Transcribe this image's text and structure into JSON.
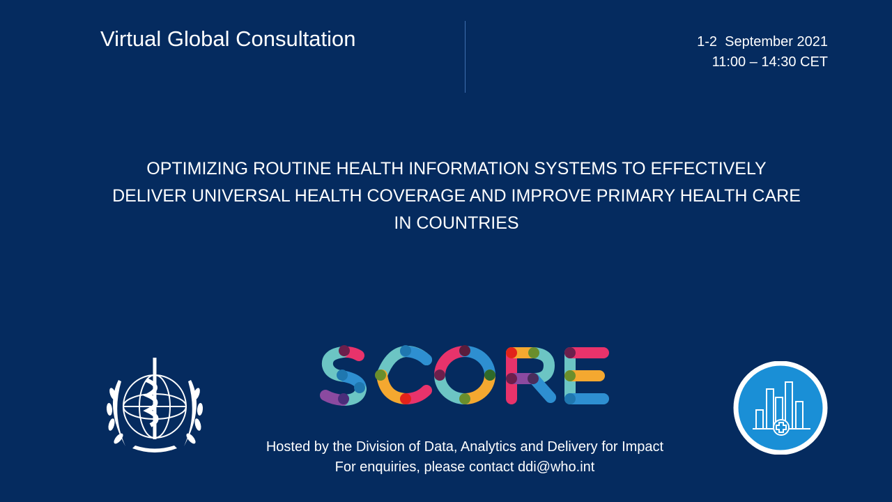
{
  "header": {
    "title": "Virtual Global Consultation",
    "date": "1-2  September 2021",
    "time": "11:00 – 14:30 CET"
  },
  "main": {
    "heading_lines": [
      "OPTIMIZING ROUTINE HEALTH INFORMATION SYSTEMS TO EFFECTIVELY",
      "DELIVER UNIVERSAL HEALTH COVERAGE AND IMPROVE PRIMARY HEALTH CARE",
      "IN COUNTRIES"
    ]
  },
  "logos": {
    "score": "SCORE",
    "who": "World Health Organization emblem",
    "right_icon": "bar-chart-health-icon"
  },
  "footer": {
    "hosted": "Hosted by the Division of Data, Analytics and Delivery for Impact",
    "contact": "For enquiries, please contact ddi@who.int"
  },
  "colors": {
    "background": "#052b5f",
    "icon_blue": "#1a8fd6"
  }
}
